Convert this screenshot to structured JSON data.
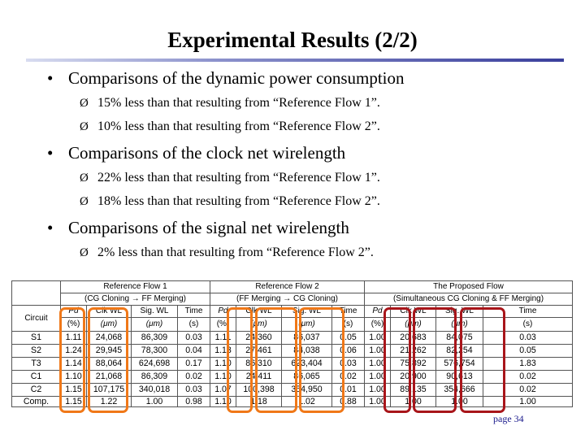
{
  "title": "Experimental Results (2/2)",
  "bullets": [
    {
      "text": "Comparisons of the dynamic power consumption",
      "subs": [
        "15% less than that resulting from “Reference Flow 1”.",
        "10% less than that resulting from “Reference Flow 2”."
      ]
    },
    {
      "text": "Comparisons of the clock net wirelength",
      "subs": [
        "22% less than that resulting from “Reference Flow 1”.",
        "18% less than that resulting from “Reference Flow 2”."
      ]
    },
    {
      "text": "Comparisons of the signal net wirelength",
      "subs": [
        "2% less than that resulting from “Reference Flow 2”."
      ]
    }
  ],
  "symbols": {
    "bullet": "•",
    "arrow": "Ø"
  },
  "table": {
    "group_headers": [
      {
        "line1": "Reference Flow 1",
        "line2": "(CG Cloning → FF Merging)"
      },
      {
        "line1": "Reference Flow 2",
        "line2": "(FF Merging → CG Cloning)"
      },
      {
        "line1": "The Proposed Flow",
        "line2": "(Simultaneous CG Cloning & FF Merging)"
      }
    ],
    "circuit_header": "Circuit",
    "metric_headers": [
      "Pd",
      "Clk WL",
      "Sig. WL",
      "Time"
    ],
    "metric_units": [
      "(%)",
      "(μm)",
      "(μm)",
      "(s)"
    ],
    "rows": [
      {
        "circuit": "S1",
        "values": [
          "1.11",
          "24,068",
          "86,309",
          "0.03",
          "1.11",
          "24,360",
          "86,037",
          "0.05",
          "1.00",
          "20,683",
          "84,075",
          "0.03"
        ]
      },
      {
        "circuit": "S2",
        "values": [
          "1.24",
          "29,945",
          "78,300",
          "0.04",
          "1.13",
          "27,461",
          "84,038",
          "0.06",
          "1.00",
          "21,262",
          "82,254",
          "0.05"
        ]
      },
      {
        "circuit": "T3",
        "values": [
          "1.14",
          "88,064",
          "624,698",
          "0.17",
          "1.10",
          "86,310",
          "623,404",
          "0.03",
          "1.00",
          "75,892",
          "576,754",
          "1.83"
        ]
      },
      {
        "circuit": "C1",
        "values": [
          "1.10",
          "21,068",
          "86,309",
          "0.02",
          "1.10",
          "24,411",
          "86,065",
          "0.02",
          "1.00",
          "20,900",
          "90,613",
          "0.02"
        ]
      },
      {
        "circuit": "C2",
        "values": [
          "1.15",
          "107,175",
          "340,018",
          "0.03",
          "1.07",
          "100,398",
          "354,950",
          "0.01",
          "1.00",
          "89,135",
          "354,666",
          "0.02"
        ]
      },
      {
        "circuit": "Comp.",
        "values": [
          "1.15",
          "1.22",
          "1.00",
          "0.98",
          "1.10",
          "1.18",
          "1.02",
          "0.88",
          "1.00",
          "1.00",
          "1.00",
          "1.00"
        ]
      }
    ]
  },
  "page_number": "page 34",
  "colors": {
    "highlight_orange": "#f07818",
    "highlight_red": "#a8151a",
    "rule_dark": "#3a3f9c",
    "page_number": "#1a1a8c"
  }
}
